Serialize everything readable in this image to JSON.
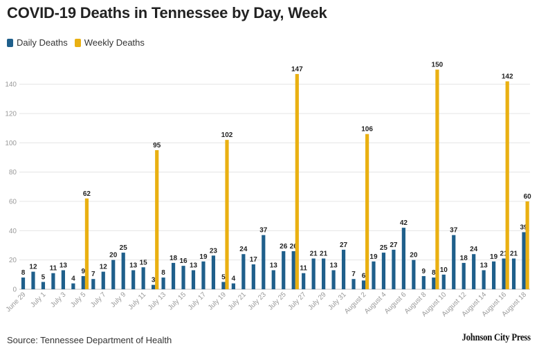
{
  "chart_data": {
    "type": "bar",
    "title": "COVID-19 Deaths in Tennessee by Day, Week",
    "series": [
      {
        "name": "Daily Deaths",
        "color": "#1f5f8b",
        "values": [
          8,
          12,
          5,
          11,
          13,
          4,
          9,
          7,
          12,
          20,
          25,
          13,
          15,
          3,
          8,
          18,
          16,
          13,
          19,
          23,
          5,
          4,
          24,
          17,
          37,
          13,
          26,
          26,
          11,
          21,
          21,
          13,
          27,
          7,
          6,
          19,
          25,
          27,
          42,
          20,
          9,
          8,
          10,
          37,
          18,
          24,
          13,
          19,
          21,
          21,
          39
        ]
      },
      {
        "name": "Weekly Deaths",
        "color": "#e9b012",
        "points": [
          {
            "index": 6,
            "value": 62
          },
          {
            "index": 13,
            "value": 95
          },
          {
            "index": 20,
            "value": 102
          },
          {
            "index": 27,
            "value": 147
          },
          {
            "index": 34,
            "value": 106
          },
          {
            "index": 41,
            "value": 150
          },
          {
            "index": 48,
            "value": 142
          },
          {
            "index": 50,
            "value": 60
          }
        ]
      }
    ],
    "x_tick_labels": [
      {
        "index": 0,
        "label": "June 29"
      },
      {
        "index": 2,
        "label": "July 1"
      },
      {
        "index": 4,
        "label": "July 3"
      },
      {
        "index": 6,
        "label": "July 5"
      },
      {
        "index": 8,
        "label": "July 7"
      },
      {
        "index": 10,
        "label": "July 9"
      },
      {
        "index": 12,
        "label": "July 11"
      },
      {
        "index": 14,
        "label": "July 13"
      },
      {
        "index": 16,
        "label": "July 15"
      },
      {
        "index": 18,
        "label": "July 17"
      },
      {
        "index": 20,
        "label": "July 19"
      },
      {
        "index": 22,
        "label": "July 21"
      },
      {
        "index": 24,
        "label": "July 23"
      },
      {
        "index": 26,
        "label": "July 25"
      },
      {
        "index": 28,
        "label": "July 27"
      },
      {
        "index": 30,
        "label": "July 29"
      },
      {
        "index": 32,
        "label": "July 31"
      },
      {
        "index": 34,
        "label": "August 2"
      },
      {
        "index": 36,
        "label": "August 4"
      },
      {
        "index": 38,
        "label": "August 6"
      },
      {
        "index": 40,
        "label": "August 8"
      },
      {
        "index": 42,
        "label": "August 10"
      },
      {
        "index": 44,
        "label": "August 12"
      },
      {
        "index": 46,
        "label": "August 14"
      },
      {
        "index": 48,
        "label": "August 16"
      },
      {
        "index": 50,
        "label": "August 18"
      }
    ],
    "y_ticks": [
      0,
      20,
      40,
      60,
      80,
      100,
      120,
      140
    ],
    "ylim": [
      0,
      155
    ],
    "xlabel": "",
    "ylabel": "",
    "grid": true,
    "legend_position": "top-left"
  },
  "source": "Source: Tennessee Department of Health",
  "brand": "Johnson City Press"
}
